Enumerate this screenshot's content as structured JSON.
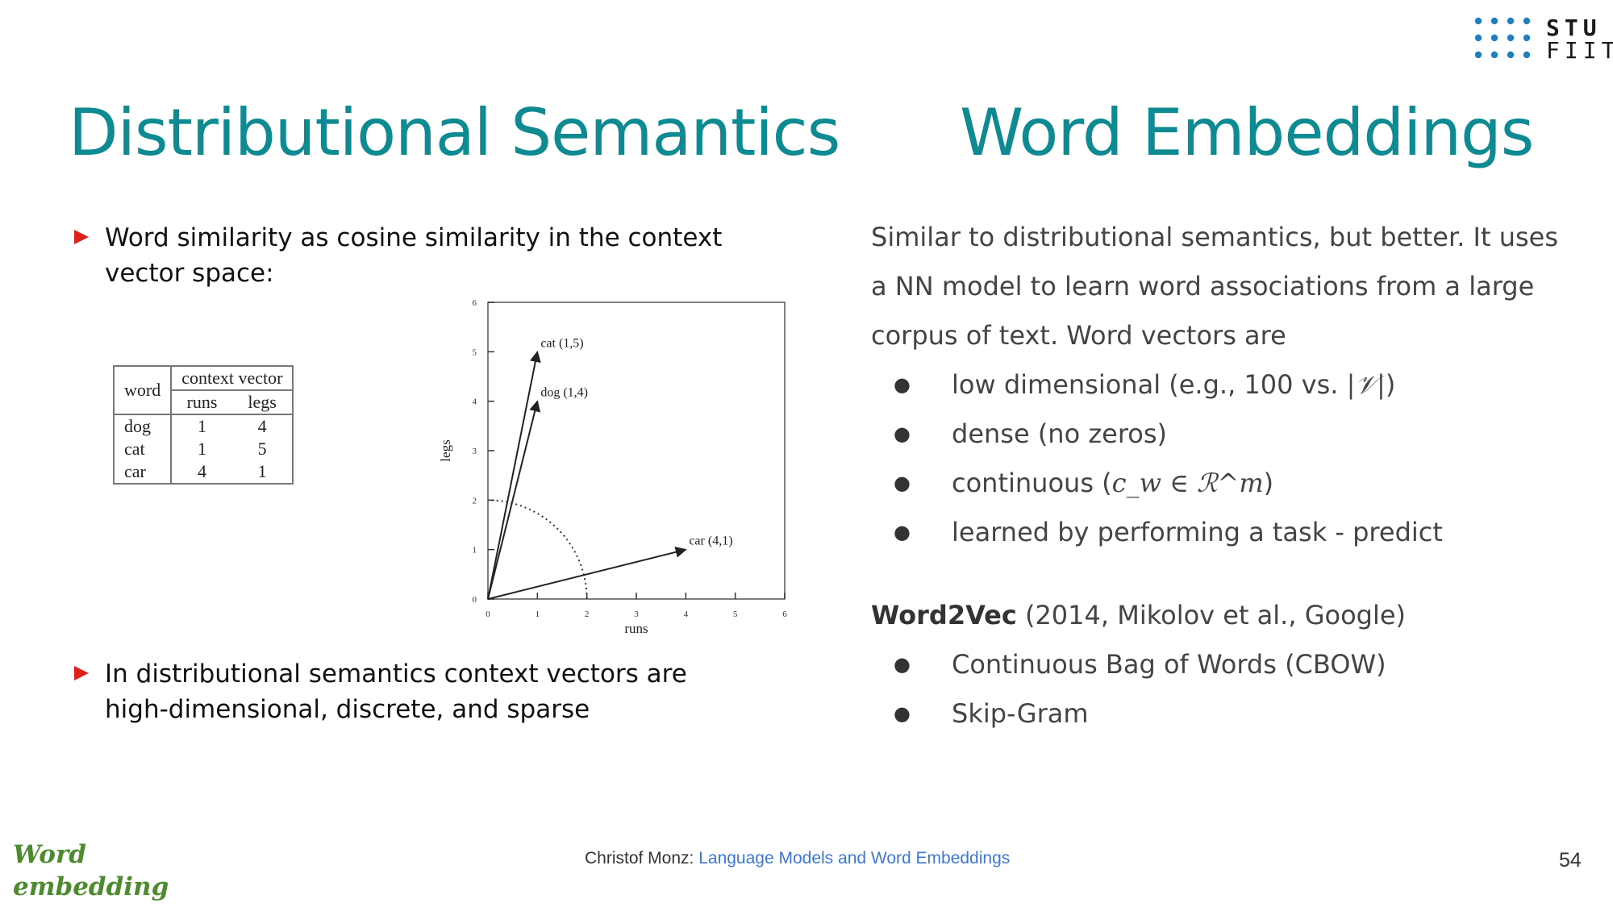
{
  "titles": {
    "left": "Distributional Semantics",
    "right": "Word Embeddings"
  },
  "logo": {
    "line1": "STU",
    "line2": "FIIT",
    "color": "#1f7fc0"
  },
  "left": {
    "bullet1": "Word similarity as cosine similarity in the context vector space:",
    "bullet2": "In distributional semantics context vectors are high-dimensional, discrete, and sparse",
    "table": {
      "word_header": "word",
      "group_header": "context vector",
      "sub_headers": [
        "runs",
        "legs"
      ],
      "rows": [
        {
          "word": "dog",
          "runs": "1",
          "legs": "4"
        },
        {
          "word": "cat",
          "runs": "1",
          "legs": "5"
        },
        {
          "word": "car",
          "runs": "4",
          "legs": "1"
        }
      ]
    }
  },
  "chart_data": {
    "type": "scatter",
    "xlabel": "runs",
    "ylabel": "legs",
    "xlim": [
      0,
      6
    ],
    "ylim": [
      0,
      6
    ],
    "x_ticks": [
      "0",
      "1",
      "2",
      "3",
      "4",
      "5",
      "6"
    ],
    "y_ticks": [
      "0",
      "1",
      "2",
      "3",
      "4",
      "5",
      "6"
    ],
    "grid": false,
    "points": [
      {
        "label": "cat (1,5)",
        "x": 1,
        "y": 5
      },
      {
        "label": "dog (1,4)",
        "x": 1,
        "y": 4
      },
      {
        "label": "car (4,1)",
        "x": 4,
        "y": 1
      }
    ],
    "arrows_from_origin": true,
    "angle_arc_radius": 2
  },
  "right": {
    "intro": "Similar to distributional semantics, but better. It uses a NN model to learn word associations from a large corpus of text. Word vectors are",
    "items": [
      {
        "text": "low dimensional (e.g., 100 vs. ",
        "math": "|𝒱|",
        "after": ")"
      },
      {
        "text": "dense (no zeros)",
        "math": "",
        "after": ""
      },
      {
        "text": "continuous (",
        "math": "c_w ∈ ℛ^m",
        "after": ")"
      },
      {
        "text": "learned by performing a task - predict",
        "math": "",
        "after": ""
      }
    ],
    "w2v_bold": "Word2Vec",
    "w2v_rest": " (2014, Mikolov et al., Google)",
    "w2v_items": [
      "Continuous Bag of Words (CBOW)",
      "Skip-Gram"
    ]
  },
  "footer": {
    "logo_line1": "Word",
    "logo_line2": "embedding",
    "credit_author": "Christof Monz: ",
    "credit_link": "Language Models and Word Embeddings",
    "page_number": "54"
  }
}
